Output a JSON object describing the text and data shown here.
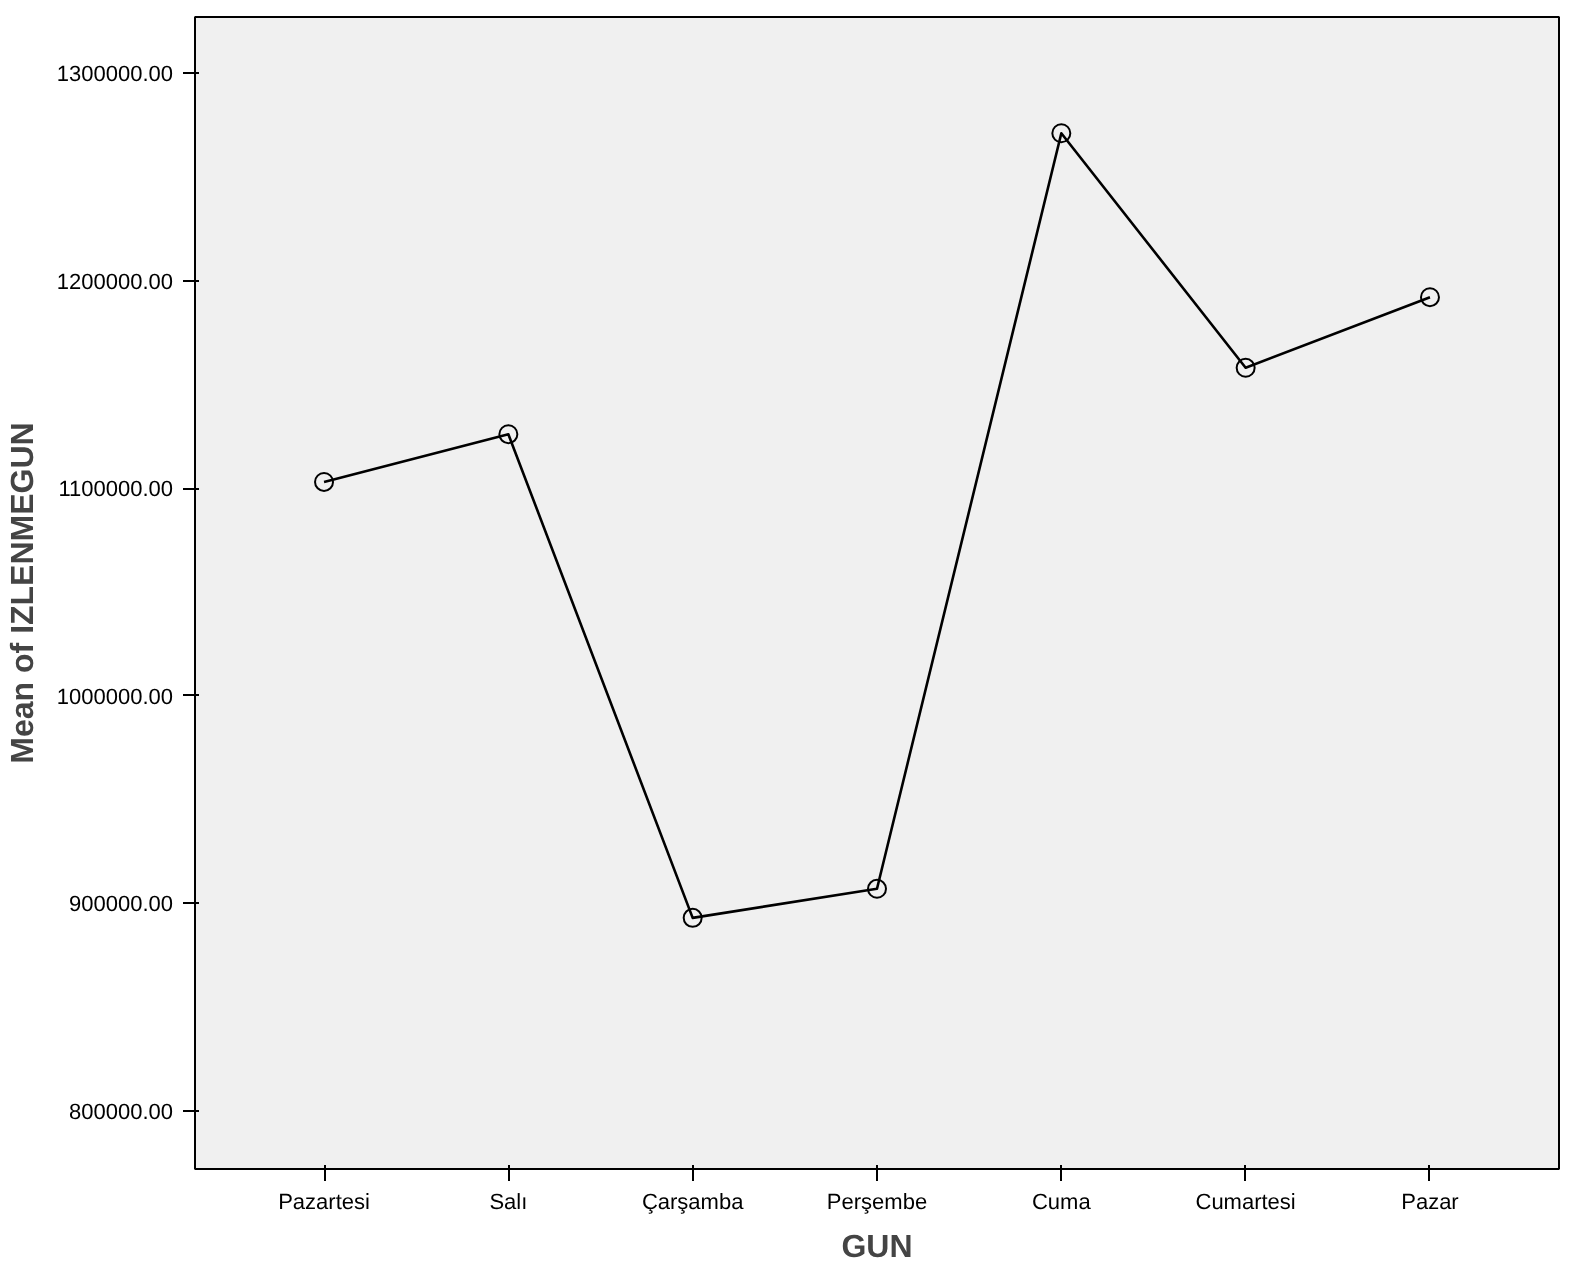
{
  "chart_data": {
    "type": "line",
    "xlabel": "GUN",
    "ylabel": "Mean of IZLENMEGUN",
    "categories": [
      "Pazartesi",
      "Salı",
      "Çarşamba",
      "Perşembe",
      "Cuma",
      "Cumartesi",
      "Pazar"
    ],
    "series": [
      {
        "color": "#000000",
        "values": [
          1103000,
          1126000,
          893000,
          907000,
          1271000,
          1158000,
          1192000
        ]
      }
    ],
    "ylim": [
      772000,
      1327000
    ],
    "yticks": [
      {
        "value": 800000,
        "label": "800000.00"
      },
      {
        "value": 900000,
        "label": "900000.00"
      },
      {
        "value": 1000000,
        "label": "1000000.00"
      },
      {
        "value": 1100000,
        "label": "1100000.00"
      },
      {
        "value": 1200000,
        "label": "1200000.00"
      },
      {
        "value": 1300000,
        "label": "1300000.00"
      }
    ],
    "grid": false,
    "marker": "circle",
    "line_style": "solid"
  }
}
